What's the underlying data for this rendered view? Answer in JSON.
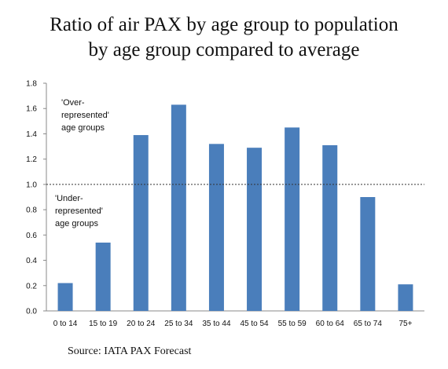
{
  "chart_data": {
    "type": "bar",
    "title_line1": "Ratio of air PAX by age group to population",
    "title_line2": "by age group compared to average",
    "categories": [
      "0 to 14",
      "15 to 19",
      "20 to 24",
      "25 to 34",
      "35 to 44",
      "45 to 54",
      "55 to 59",
      "60 to 64",
      "65 to 74",
      "75+"
    ],
    "values": [
      0.22,
      0.54,
      1.39,
      1.63,
      1.32,
      1.29,
      1.45,
      1.31,
      0.9,
      0.21
    ],
    "ylim": [
      0,
      1.8
    ],
    "yticks": [
      "0.0",
      "0.2",
      "0.4",
      "0.6",
      "0.8",
      "1.0",
      "1.2",
      "1.4",
      "1.6",
      "1.8"
    ],
    "reference_line": 1.0,
    "bar_color": "#4a7ebb",
    "annotations": {
      "over": [
        "'Over-",
        "represented'",
        "age groups"
      ],
      "under": [
        "'Under-",
        "represented'",
        "age groups"
      ]
    },
    "source": "Source: IATA PAX Forecast"
  }
}
